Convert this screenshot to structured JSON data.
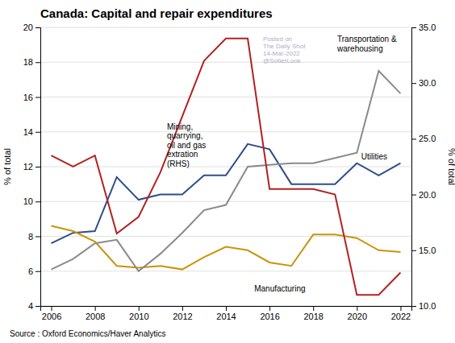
{
  "chart_data": {
    "type": "line",
    "title": "Canada: Capital and repair expenditures",
    "ylabel": "% of total",
    "y2label": "% of total",
    "source": "Source : Oxford Economics/Haver Analytics",
    "x": [
      2006,
      2007,
      2008,
      2009,
      2010,
      2011,
      2012,
      2013,
      2014,
      2015,
      2016,
      2017,
      2018,
      2019,
      2020,
      2021,
      2022
    ],
    "xlim": [
      2005.5,
      2022.5
    ],
    "xticks": [
      2006,
      2008,
      2010,
      2012,
      2014,
      2016,
      2018,
      2020,
      2022
    ],
    "ylim": [
      4,
      20
    ],
    "yticks": [
      4,
      6,
      8,
      10,
      12,
      14,
      16,
      18,
      20
    ],
    "y2lim": [
      10,
      35
    ],
    "y2ticks": [
      {
        "value": 10,
        "label": "10.0"
      },
      {
        "value": 15,
        "label": "15.0"
      },
      {
        "value": 20,
        "label": "20.0"
      },
      {
        "value": 25,
        "label": "25.0"
      },
      {
        "value": 30,
        "label": "30.0"
      },
      {
        "value": 35,
        "label": "35.0"
      }
    ],
    "grid": true,
    "series": [
      {
        "name": "Utilities",
        "color": "#2e4d8a",
        "values": [
          7.6,
          8.2,
          8.3,
          11.4,
          10.1,
          10.4,
          10.4,
          11.5,
          11.5,
          13.3,
          13.0,
          11.0,
          11.0,
          11.0,
          12.2,
          11.5,
          12.2
        ]
      },
      {
        "name": "Manufacturing",
        "color": "#c8950a",
        "values": [
          8.6,
          8.3,
          7.7,
          6.3,
          6.2,
          6.3,
          6.1,
          6.8,
          7.4,
          7.2,
          6.5,
          6.3,
          8.1,
          8.1,
          7.9,
          7.2,
          7.1
        ]
      },
      {
        "name": "Transportation &\nwarehousing",
        "color": "#8a8a8a",
        "values": [
          6.1,
          6.7,
          7.6,
          7.8,
          6.0,
          7.0,
          8.2,
          9.5,
          9.8,
          12.0,
          12.1,
          12.2,
          12.2,
          12.5,
          12.8,
          17.5,
          16.2
        ]
      },
      {
        "name": "Mining,\nquarrying,\noil and gas\nextration\n(RHS)",
        "color": "#b22222",
        "axis": "y2",
        "values": [
          23.5,
          22.5,
          23.5,
          16.5,
          18.0,
          22.0,
          27.0,
          32.0,
          34.0,
          34.0,
          20.5,
          20.5,
          20.5,
          20.0,
          11.0,
          11.0,
          13.0
        ]
      }
    ],
    "annotations": [
      {
        "text": "Mining,\nquarrying,\noil and gas\nextration\n(RHS)",
        "x": 2011.3,
        "y": 14.5
      },
      {
        "text": "Transportation &\nwarehousing",
        "x": 2019.1,
        "y": 18.5
      },
      {
        "text": "Utilities",
        "x": 2020.2,
        "y": 12.6
      },
      {
        "text": "Manufacturing",
        "x": 2015.3,
        "y": 5.2
      }
    ],
    "watermark": {
      "text": "Posted on\nThe Daily Shot\n14-Mar-2022\n@SoberLook",
      "color": "#9999bb"
    }
  }
}
